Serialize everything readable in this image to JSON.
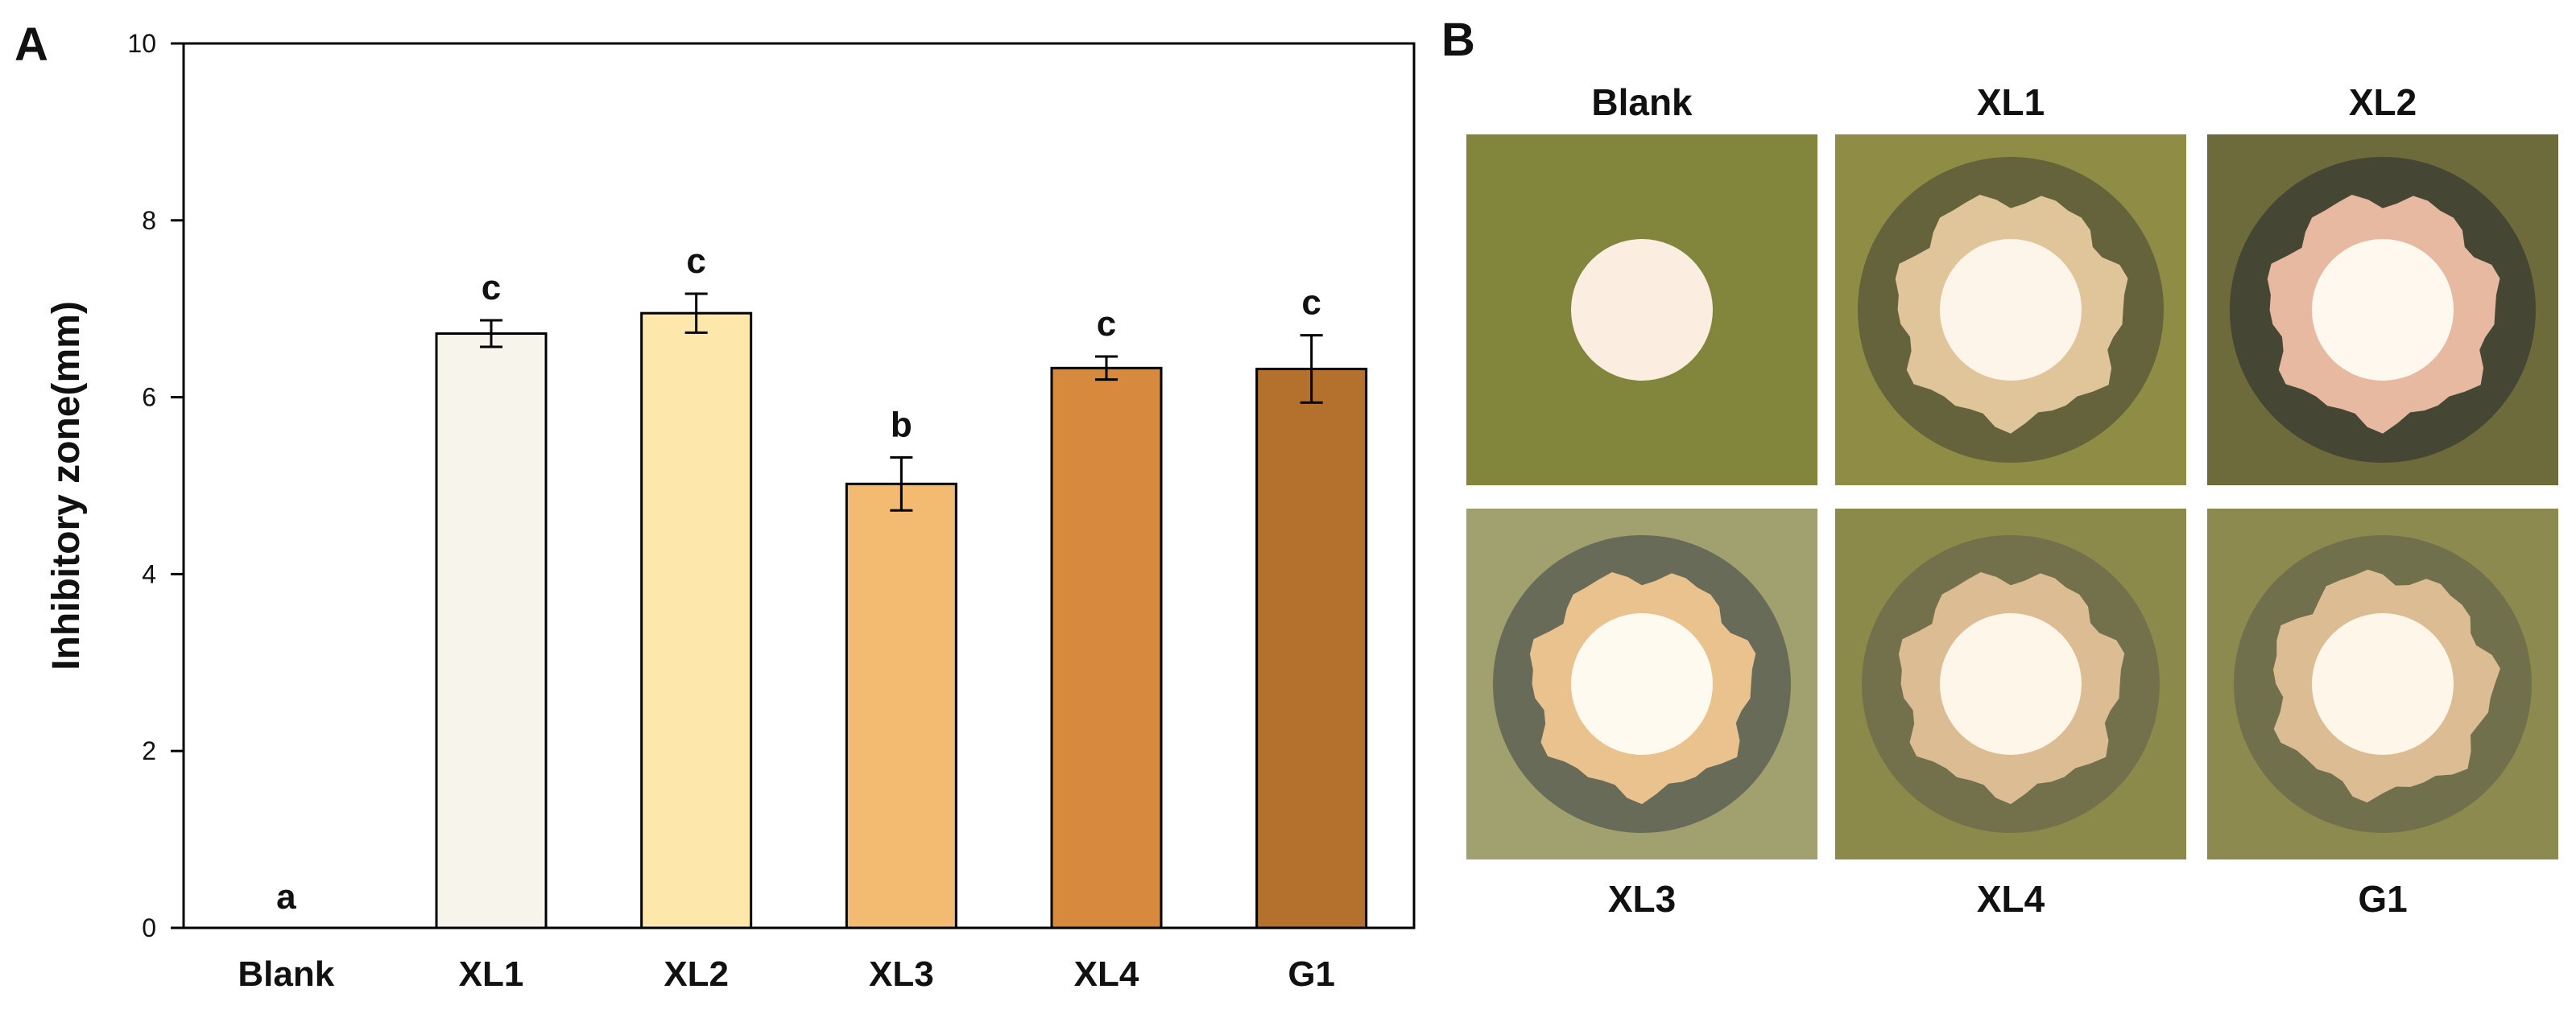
{
  "panels": {
    "a_letter": "A",
    "b_letter": "B"
  },
  "chart_data": {
    "type": "bar",
    "title": "",
    "xlabel": "",
    "ylabel": "Inhibitory zone(mm)",
    "categories": [
      "Blank",
      "XL1",
      "XL2",
      "XL3",
      "XL4",
      "G1"
    ],
    "values": [
      0,
      6.72,
      6.95,
      5.02,
      6.33,
      6.32
    ],
    "errors": [
      0,
      0.15,
      0.22,
      0.3,
      0.13,
      0.38
    ],
    "significance": [
      "a",
      "c",
      "c",
      "b",
      "c",
      "c"
    ],
    "bar_colors": [
      "#ffffff",
      "#f7f4ec",
      "#fde7ab",
      "#f3bb72",
      "#d7893d",
      "#b4712e"
    ],
    "ylim": [
      0,
      10
    ],
    "yticks": [
      0,
      2,
      4,
      6,
      8,
      10
    ],
    "grid": false,
    "legend": "none"
  },
  "plates": {
    "top": [
      {
        "label": "Blank",
        "plate_color": "#82853c",
        "disc_color": "#fbeee0",
        "colony_color": "#fbeee0",
        "zone_color": "#82853c"
      },
      {
        "label": "XL1",
        "plate_color": "#8f8d45",
        "disc_color": "#fdf5ea",
        "colony_color": "#e0c49a",
        "zone_color": "#5d5c3b"
      },
      {
        "label": "XL2",
        "plate_color": "#6d6a3c",
        "disc_color": "#fff8ef",
        "colony_color": "#e6b9a0",
        "zone_color": "#403f32"
      }
    ],
    "bottom": [
      {
        "label": "XL3",
        "plate_color": "#a1a170",
        "disc_color": "#fffaf0",
        "colony_color": "#e9c28e",
        "zone_color": "#5e6153"
      },
      {
        "label": "XL4",
        "plate_color": "#8c8a4b",
        "disc_color": "#fff6ea",
        "colony_color": "#dcbd93",
        "zone_color": "#6d6c4b"
      },
      {
        "label": "G1",
        "plate_color": "#8c8a4e",
        "disc_color": "#fff6ea",
        "colony_color": "#dcbd93",
        "zone_color": "#6b6b4d"
      }
    ]
  }
}
